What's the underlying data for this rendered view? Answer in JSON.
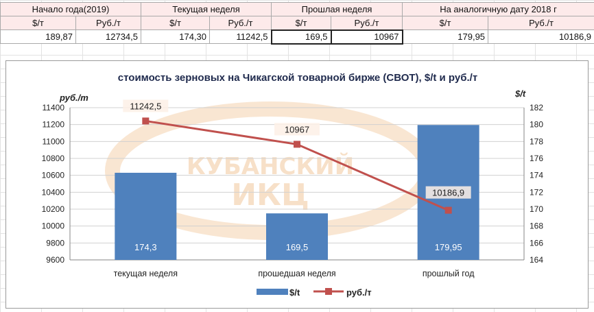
{
  "table": {
    "headers": [
      "Начало года(2019)",
      "Текущая неделя",
      "Прошлая неделя",
      "На аналогичную дату 2018 г"
    ],
    "units": [
      "$/т",
      "Руб./т",
      "$/т",
      "Руб./т",
      "$/т",
      "Руб./т",
      "$/т",
      "Руб./т"
    ],
    "values": [
      "189,87",
      "12734,5",
      "174,30",
      "11242,5",
      "169,5",
      "10967",
      "179,95",
      "10186,9"
    ]
  },
  "watermark": {
    "line1": "КУБАНСКИЙ",
    "line2": "ИКЦ"
  },
  "chart_data": {
    "type": "bar",
    "title": "стоимость зерновых на Чикагской товарной бирже (СВОТ), $/t и руб./т",
    "ylabel": "руб./т",
    "y2label": "$/t",
    "categories": [
      "текущая неделя",
      "прошедшая неделя",
      "прошлый год"
    ],
    "yticks": [
      "9600",
      "9800",
      "10000",
      "10200",
      "10400",
      "10600",
      "10800",
      "11000",
      "11200",
      "11400"
    ],
    "y2ticks": [
      "164",
      "166",
      "168",
      "170",
      "172",
      "174",
      "176",
      "178",
      "180",
      "182"
    ],
    "ylim": [
      9600,
      11400
    ],
    "y2lim": [
      164,
      182
    ],
    "series": [
      {
        "name": "$/t",
        "type": "bar",
        "axis": "secondary",
        "values": [
          174.3,
          169.5,
          179.95
        ],
        "labels": [
          "174,3",
          "169,5",
          "179,95"
        ],
        "color": "#4f81bd"
      },
      {
        "name": "руб./т",
        "type": "line",
        "axis": "primary",
        "values": [
          11242.5,
          10967,
          10186.9
        ],
        "labels": [
          "11242,5",
          "10967",
          "10186,9"
        ],
        "color": "#c0504d"
      }
    ],
    "legend": "bottom",
    "grid": true
  }
}
